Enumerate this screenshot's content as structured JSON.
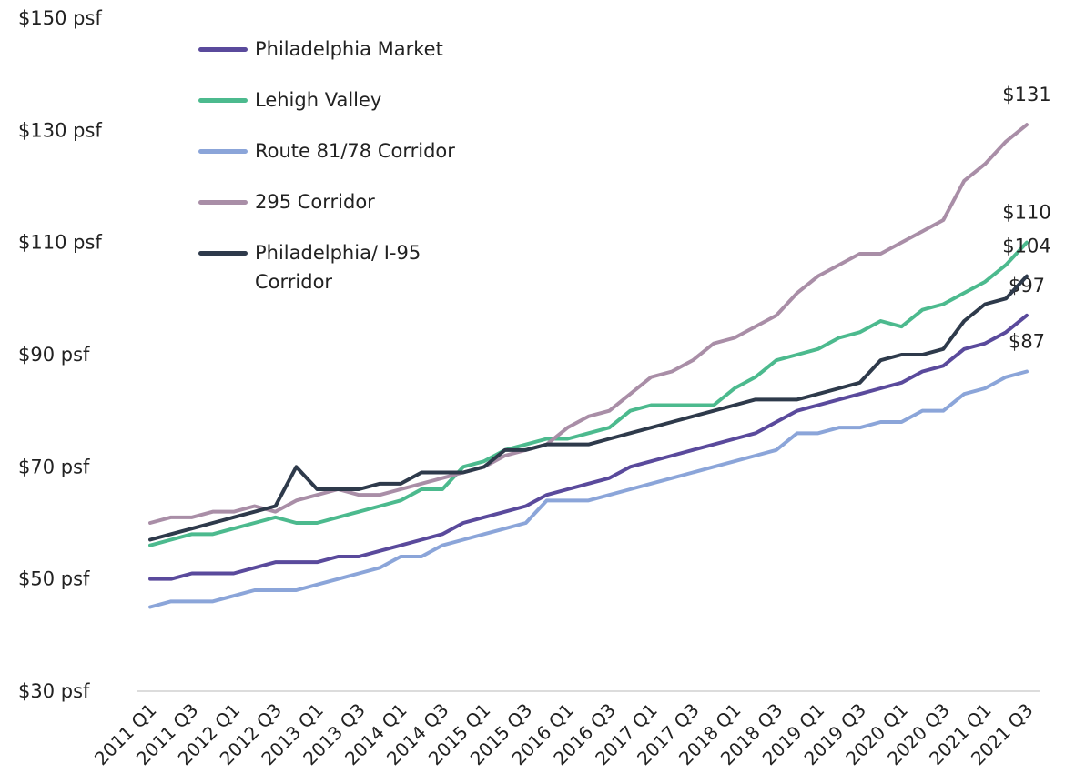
{
  "chart_data": {
    "type": "line",
    "categories": [
      "2011 Q1",
      null,
      "2011 Q3",
      null,
      "2012 Q1",
      null,
      "2012 Q3",
      null,
      "2013 Q1",
      null,
      "2013 Q3",
      null,
      "2014 Q1",
      null,
      "2014 Q3",
      null,
      "2015 Q1",
      null,
      "2015 Q3",
      null,
      "2016 Q1",
      null,
      "2016 Q3",
      null,
      "2017 Q1",
      null,
      "2017 Q3",
      null,
      "2018 Q1",
      null,
      "2018 Q3",
      null,
      "2019 Q1",
      null,
      "2019 Q3",
      null,
      "2020 Q1",
      null,
      "2020 Q3",
      null,
      "2021 Q1",
      null,
      "2021 Q3"
    ],
    "series": [
      {
        "name": "Philadelphia Market",
        "color": "#5a4a9c",
        "values": [
          50,
          50,
          51,
          51,
          51,
          52,
          53,
          53,
          53,
          54,
          54,
          55,
          56,
          57,
          58,
          60,
          61,
          62,
          63,
          65,
          66,
          67,
          68,
          70,
          71,
          72,
          73,
          74,
          75,
          76,
          78,
          80,
          81,
          82,
          83,
          84,
          85,
          87,
          88,
          91,
          92,
          94,
          97
        ],
        "value_labels": [
          null,
          null,
          null,
          null,
          null,
          null,
          null,
          null,
          null,
          null,
          null,
          null,
          null,
          null,
          null,
          null,
          null,
          null,
          null,
          null,
          null,
          null,
          null,
          null,
          null,
          null,
          null,
          null,
          null,
          null,
          null,
          null,
          null,
          null,
          null,
          null,
          null,
          null,
          null,
          null,
          null,
          null,
          "$97"
        ]
      },
      {
        "name": "Lehigh Valley",
        "color": "#4cba8e",
        "values": [
          56,
          57,
          58,
          58,
          59,
          60,
          61,
          60,
          60,
          61,
          62,
          63,
          64,
          66,
          66,
          70,
          71,
          73,
          74,
          75,
          75,
          76,
          77,
          80,
          81,
          81,
          81,
          81,
          84,
          86,
          89,
          90,
          91,
          93,
          94,
          96,
          95,
          98,
          99,
          101,
          103,
          106,
          110
        ],
        "value_labels": [
          null,
          null,
          null,
          null,
          null,
          null,
          null,
          null,
          null,
          null,
          null,
          null,
          null,
          null,
          null,
          null,
          null,
          null,
          null,
          null,
          null,
          null,
          null,
          null,
          null,
          null,
          null,
          null,
          null,
          null,
          null,
          null,
          null,
          null,
          null,
          null,
          null,
          null,
          null,
          null,
          null,
          null,
          "$110"
        ]
      },
      {
        "name": "Route 81/78 Corridor",
        "color": "#8ba5d9",
        "values": [
          45,
          46,
          46,
          46,
          47,
          48,
          48,
          48,
          49,
          50,
          51,
          52,
          54,
          54,
          56,
          57,
          58,
          59,
          60,
          64,
          64,
          64,
          65,
          66,
          67,
          68,
          69,
          70,
          71,
          72,
          73,
          76,
          76,
          77,
          77,
          78,
          78,
          80,
          80,
          83,
          84,
          86,
          87
        ],
        "value_labels": [
          null,
          null,
          null,
          null,
          null,
          null,
          null,
          null,
          null,
          null,
          null,
          null,
          null,
          null,
          null,
          null,
          null,
          null,
          null,
          null,
          null,
          null,
          null,
          null,
          null,
          null,
          null,
          null,
          null,
          null,
          null,
          null,
          null,
          null,
          null,
          null,
          null,
          null,
          null,
          null,
          null,
          null,
          "$87"
        ]
      },
      {
        "name": "295 Corridor",
        "color": "#a98ea7",
        "values": [
          60,
          61,
          61,
          62,
          62,
          63,
          62,
          64,
          65,
          66,
          65,
          65,
          66,
          67,
          68,
          69,
          70,
          72,
          73,
          74,
          77,
          79,
          80,
          83,
          86,
          87,
          89,
          92,
          93,
          95,
          97,
          101,
          104,
          106,
          108,
          108,
          110,
          112,
          114,
          121,
          124,
          128,
          131
        ],
        "value_labels": [
          null,
          null,
          null,
          null,
          null,
          null,
          null,
          null,
          null,
          null,
          null,
          null,
          null,
          null,
          null,
          null,
          null,
          null,
          null,
          null,
          null,
          null,
          null,
          null,
          null,
          null,
          null,
          null,
          null,
          null,
          null,
          null,
          null,
          null,
          null,
          null,
          null,
          null,
          null,
          null,
          null,
          null,
          "$131"
        ]
      },
      {
        "name": "Philadelphia/ I-95 Corridor",
        "color": "#2e3a4b",
        "values": [
          57,
          58,
          59,
          60,
          61,
          62,
          63,
          70,
          66,
          66,
          66,
          67,
          67,
          69,
          69,
          69,
          70,
          73,
          73,
          74,
          74,
          74,
          75,
          76,
          77,
          78,
          79,
          80,
          81,
          82,
          82,
          82,
          83,
          84,
          85,
          89,
          90,
          90,
          91,
          96,
          99,
          100,
          104
        ],
        "value_labels": [
          null,
          null,
          null,
          null,
          null,
          null,
          null,
          null,
          null,
          null,
          null,
          null,
          null,
          null,
          null,
          null,
          null,
          null,
          null,
          null,
          null,
          null,
          null,
          null,
          null,
          null,
          null,
          null,
          null,
          null,
          null,
          null,
          null,
          null,
          null,
          null,
          null,
          null,
          null,
          null,
          null,
          null,
          "$104"
        ]
      }
    ],
    "ylim": [
      30,
      150
    ],
    "yticks": [
      {
        "value": 30,
        "label": "$30 psf"
      },
      {
        "value": 50,
        "label": "$50 psf"
      },
      {
        "value": 70,
        "label": "$70 psf"
      },
      {
        "value": 90,
        "label": "$90 psf"
      },
      {
        "value": 110,
        "label": "$110 psf"
      },
      {
        "value": 130,
        "label": "$130 psf"
      },
      {
        "value": 150,
        "label": "$150 psf"
      }
    ],
    "grid": false,
    "legend": "top-left"
  }
}
